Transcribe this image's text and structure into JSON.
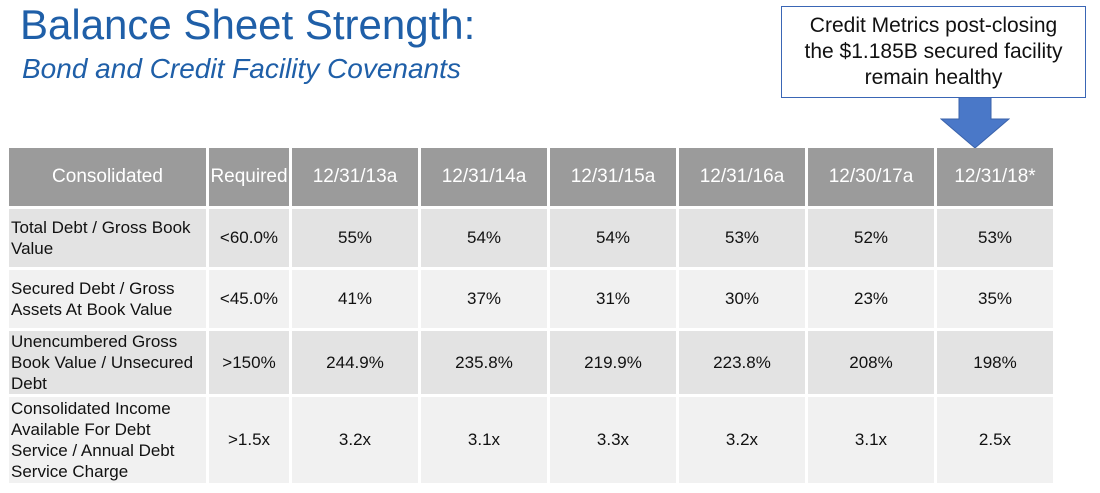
{
  "title": "Balance Sheet Strength:",
  "subtitle": "Bond and Credit Facility Covenants",
  "callout": {
    "line1": "Credit Metrics post-closing",
    "line2": "the $1.185B secured facility",
    "line3": "remain healthy"
  },
  "table": {
    "headers": [
      "Consolidated",
      "Required",
      "12/31/13a",
      "12/31/14a",
      "12/31/15a",
      "12/31/16a",
      "12/30/17a",
      "12/31/18*"
    ],
    "rows": [
      {
        "label": "Total Debt / Gross Book Value",
        "cells": [
          "<60.0%",
          "55%",
          "54%",
          "54%",
          "53%",
          "52%",
          "53%"
        ]
      },
      {
        "label": "Secured Debt / Gross Assets At Book Value",
        "cells": [
          "<45.0%",
          "41%",
          "37%",
          "31%",
          "30%",
          "23%",
          "35%"
        ]
      },
      {
        "label": "Unencumbered Gross Book Value / Unsecured Debt",
        "cells": [
          ">150%",
          "244.9%",
          "235.8%",
          "219.9%",
          "223.8%",
          "208%",
          "198%"
        ]
      },
      {
        "label": "Consolidated Income Available For Debt Service / Annual Debt Service Charge",
        "cells": [
          ">1.5x",
          "3.2x",
          "3.1x",
          "3.3x",
          "3.2x",
          "3.1x",
          "2.5x"
        ]
      }
    ]
  },
  "colors": {
    "title": "#1f5fa8",
    "header_bg": "#9b9b9b",
    "row_dark": "#e3e3e3",
    "row_light": "#f1f1f1",
    "arrow": "#4a78c8"
  }
}
